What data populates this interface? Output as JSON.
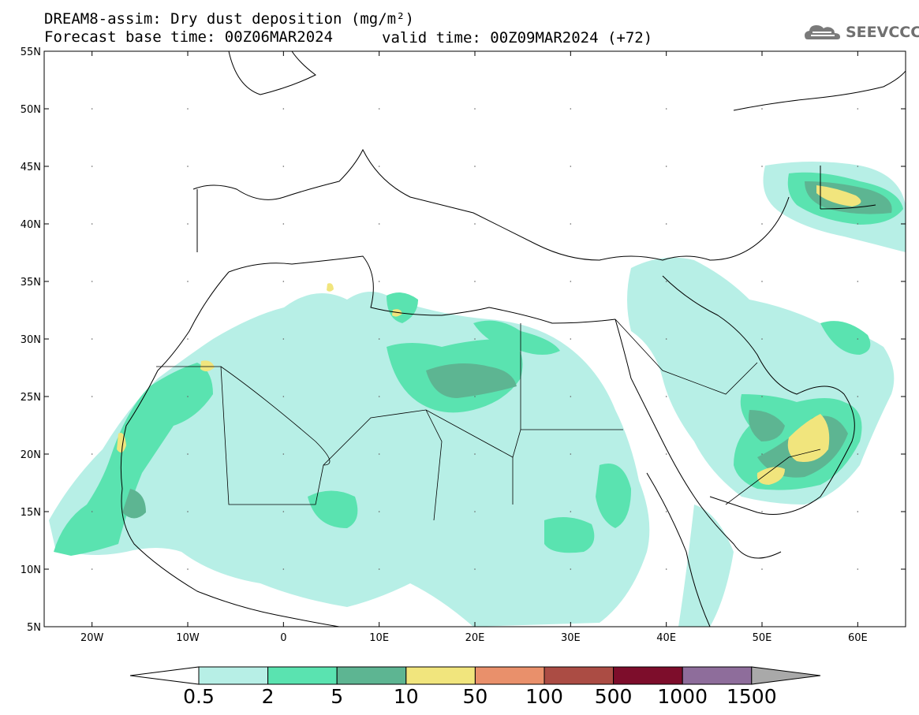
{
  "header": {
    "title_line1": "DREAM8-assim: Dry dust deposition (mg/m²)",
    "base_time": "Forecast base time: 00Z06MAR2024",
    "valid_time": "valid time: 00Z09MAR2024 (+72)"
  },
  "logo": {
    "text": "SEEVCCC",
    "icon": "cloud-logo-icon"
  },
  "map": {
    "lon_range": [
      -25,
      65
    ],
    "lat_range": [
      5,
      55
    ],
    "lon_ticks": [
      "20W",
      "10W",
      "0",
      "10E",
      "20E",
      "30E",
      "40E",
      "50E",
      "60E"
    ],
    "lat_ticks": [
      "55N",
      "50N",
      "45N",
      "40N",
      "35N",
      "30N",
      "25N",
      "20N",
      "15N",
      "10N",
      "5N"
    ]
  },
  "colorbar": {
    "labels": [
      "0.5",
      "2",
      "5",
      "10",
      "50",
      "100",
      "500",
      "1000",
      "1500"
    ],
    "colors": [
      "#b7efe6",
      "#5ae3b0",
      "#5db592",
      "#f1e57d",
      "#e9906b",
      "#ab4c44",
      "#7d0d2b",
      "#8e6d9b"
    ],
    "under_color": "#ffffff",
    "over_color": "#a9a9a9"
  },
  "chart_data": {
    "type": "map",
    "variable": "Dry dust deposition (mg/m²)",
    "model": "DREAM8-assim",
    "base_time": "00Z06MAR2024",
    "valid_time": "00Z09MAR2024",
    "lead_hours": 72
  }
}
